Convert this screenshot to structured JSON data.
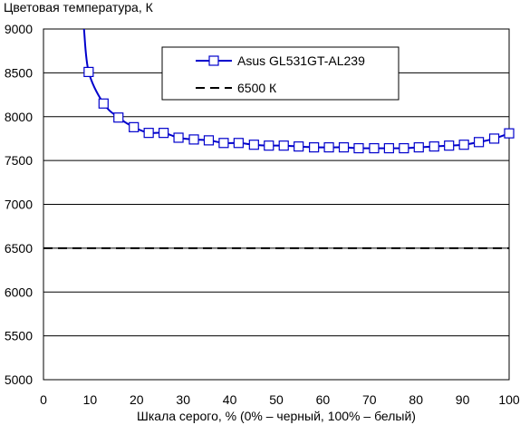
{
  "chart_data": {
    "type": "line",
    "title": "",
    "ylabel": "Цветовая температура, К",
    "xlabel": "Шкала серого, % (0% – черный, 100% – белый)",
    "xlim": [
      0,
      100
    ],
    "ylim": [
      5000,
      9000
    ],
    "x_ticks": [
      "0",
      "10",
      "20",
      "30",
      "40",
      "50",
      "60",
      "70",
      "80",
      "90",
      "100"
    ],
    "y_ticks": [
      "5000",
      "5500",
      "6000",
      "6500",
      "7000",
      "7500",
      "8000",
      "8500",
      "9000"
    ],
    "grid": "horizontal",
    "legend_position": "top-center",
    "series": [
      {
        "name": "Asus GL531GT-AL239",
        "color": "#0000cc",
        "marker": "square",
        "x": [
          9.7,
          12.9,
          16.1,
          19.4,
          22.6,
          25.8,
          29.0,
          32.3,
          35.5,
          38.7,
          41.9,
          45.2,
          48.4,
          51.6,
          54.8,
          58.1,
          61.3,
          64.5,
          67.7,
          71.0,
          74.2,
          77.4,
          80.6,
          83.9,
          87.1,
          90.3,
          93.5,
          96.8,
          100.0
        ],
        "y": [
          8510,
          8150,
          7990,
          7880,
          7815,
          7815,
          7760,
          7740,
          7730,
          7700,
          7700,
          7680,
          7670,
          7670,
          7660,
          7650,
          7650,
          7650,
          7640,
          7640,
          7640,
          7640,
          7650,
          7660,
          7670,
          7680,
          7710,
          7750,
          7810
        ],
        "curve_start": {
          "x": 8.7,
          "y": 9000
        }
      },
      {
        "name": "6500 К",
        "color": "#000000",
        "style": "dashed",
        "x": [
          0,
          100
        ],
        "y": [
          6500,
          6500
        ]
      }
    ]
  }
}
